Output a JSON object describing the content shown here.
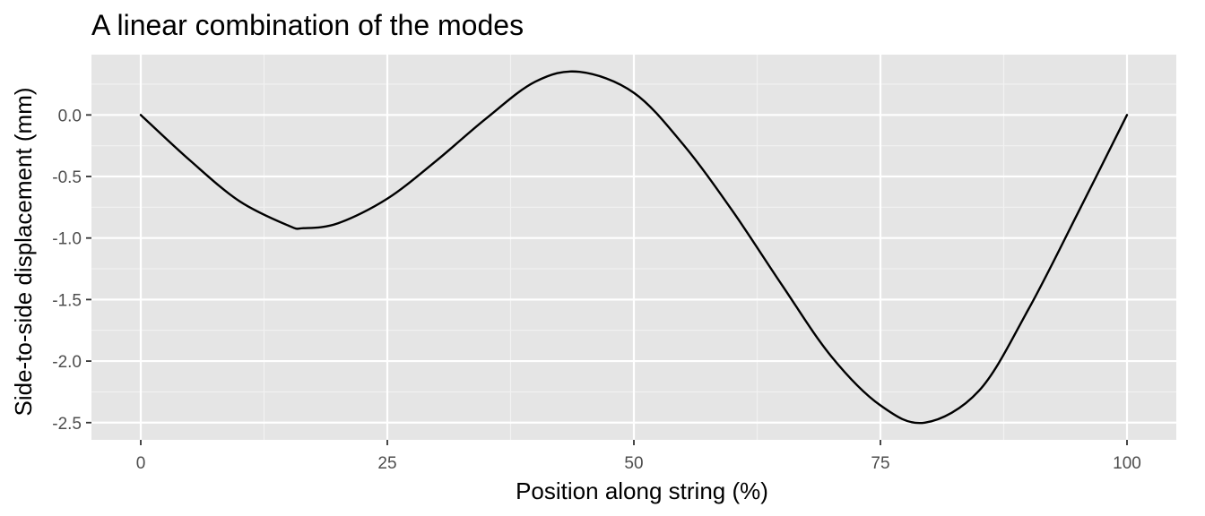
{
  "chart_data": {
    "type": "line",
    "title": "A linear combination of the modes",
    "xlabel": "Position along string (%)",
    "ylabel": "Side-to-side displacement (mm)",
    "xlim": [
      -5,
      105
    ],
    "ylim": [
      -2.64,
      0.49
    ],
    "x_ticks": [
      0,
      25,
      50,
      75,
      100
    ],
    "x_tick_labels": [
      "0",
      "25",
      "50",
      "75",
      "100"
    ],
    "y_ticks": [
      0.0,
      -0.5,
      -1.0,
      -1.5,
      -2.0,
      -2.5
    ],
    "y_tick_labels": [
      "0.0",
      "-0.5",
      "-1.0",
      "-1.5",
      "-2.0",
      "-2.5"
    ],
    "grid": true,
    "colors": {
      "panel_background": "#e5e5e5",
      "grid_major": "#ffffff",
      "grid_minor": "#f2f2f2",
      "line": "#000000",
      "tick_mark": "#333333"
    },
    "series": [
      {
        "x": [
          0,
          5,
          10,
          15,
          16.5,
          20,
          25,
          30,
          35,
          40,
          44.5,
          50,
          55,
          60,
          65,
          70,
          75,
          79.5,
          85,
          90,
          95,
          100
        ],
        "y": [
          0.0,
          -0.37,
          -0.7,
          -0.9,
          -0.92,
          -0.88,
          -0.68,
          -0.37,
          -0.03,
          0.27,
          0.35,
          0.18,
          -0.24,
          -0.78,
          -1.38,
          -1.96,
          -2.36,
          -2.5,
          -2.24,
          -1.58,
          -0.8,
          0.0
        ]
      }
    ]
  }
}
